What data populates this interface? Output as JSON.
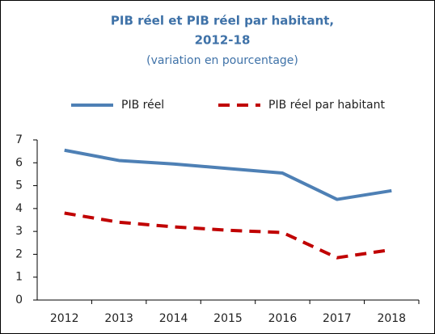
{
  "chart_data": {
    "type": "line",
    "title": [
      "PIB réel et PIB réel par habitant,",
      "2012-18"
    ],
    "subtitle": "(variation en pourcentage)",
    "categories": [
      "2012",
      "2013",
      "2014",
      "2015",
      "2016",
      "2017",
      "2018"
    ],
    "series": [
      {
        "name": "PIB réel",
        "color": "#4e80b5",
        "dash": false,
        "values": [
          6.55,
          6.1,
          5.95,
          5.75,
          5.55,
          4.4,
          4.78
        ]
      },
      {
        "name": "PIB réel par habitant",
        "color": "#c00000",
        "dash": true,
        "values": [
          3.8,
          3.4,
          3.2,
          3.05,
          2.95,
          1.85,
          2.2
        ]
      }
    ],
    "ylim": [
      0,
      7
    ],
    "yticks": [
      0,
      1,
      2,
      3,
      4,
      5,
      6,
      7
    ],
    "grid": false,
    "legend": "top"
  }
}
